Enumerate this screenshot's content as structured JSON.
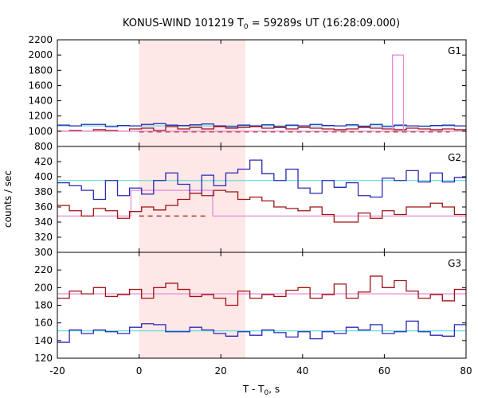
{
  "title": {
    "prefix": "KONUS-WIND 101219 T",
    "sub": "0",
    "suffix": " = 59289s UT (16:28:09.000)"
  },
  "axes": {
    "xlabel_prefix": "T - T",
    "xlabel_sub": "0",
    "xlabel_suffix": ", s",
    "ylabel": "counts / sec"
  },
  "colors": {
    "highlight": "#fde7e7",
    "blue": "#2a2ab4",
    "red": "#a01414",
    "cyan": "#66dddd",
    "pink": "#e48ad8"
  },
  "chart_data": {
    "type": "line",
    "xlim": [
      -20,
      80
    ],
    "xticks": [
      -20,
      0,
      20,
      40,
      60,
      80
    ],
    "highlight_interval": [
      0,
      26
    ],
    "panels": [
      {
        "label": "G1",
        "ylim": [
          800,
          2200
        ],
        "yticks": [
          800,
          1000,
          1200,
          1400,
          1600,
          1800,
          2000,
          2200
        ],
        "step_series": [
          {
            "color": "blue",
            "x0": -20,
            "dx": 2.944,
            "values": [
              1080,
              1070,
              1090,
              1090,
              1060,
              1075,
              1070,
              1090,
              1100,
              1080,
              1075,
              1085,
              1095,
              1070,
              1060,
              1080,
              1070,
              1085,
              1060,
              1080,
              1070,
              1090,
              1075,
              1070,
              1085,
              1065,
              1090,
              1060,
              1080,
              1070,
              1065,
              1075,
              1080,
              1070,
              1055
            ]
          },
          {
            "color": "red",
            "x0": -20,
            "dx": 2.944,
            "values": [
              1000,
              1010,
              1000,
              1020,
              1010,
              1000,
              1030,
              1040,
              1010,
              1060,
              1030,
              1050,
              1030,
              1060,
              1040,
              1050,
              1060,
              1040,
              1050,
              1030,
              1050,
              1040,
              1030,
              1020,
              1030,
              1050,
              1040,
              1030,
              1020,
              1040,
              1030,
              1020,
              1030,
              1020,
              1040
            ]
          },
          {
            "color": "pink",
            "steps": [
              [
                -20,
                1000
              ],
              [
                62,
                2000
              ],
              [
                64.7,
                1000
              ],
              [
                80,
                1000
              ]
            ]
          }
        ],
        "levels": [
          {
            "color": "cyan",
            "value": 1070,
            "from": -20,
            "to": 80
          },
          {
            "color": "pink",
            "value": 1000,
            "from": -20,
            "to": 80
          }
        ],
        "dashed_segments": [
          {
            "color": "red",
            "value": 990,
            "from": 0,
            "to": 76
          }
        ]
      },
      {
        "label": "G2",
        "ylim": [
          300,
          440
        ],
        "yticks": [
          300,
          320,
          340,
          360,
          380,
          400,
          420
        ],
        "step_series": [
          {
            "color": "blue",
            "x0": -20,
            "dx": 2.944,
            "values": [
              392,
              388,
              382,
              370,
              395,
              375,
              385,
              377,
              395,
              405,
              390,
              378,
              402,
              388,
              405,
              410,
              422,
              404,
              395,
              410,
              385,
              378,
              395,
              386,
              392,
              375,
              373,
              398,
              395,
              408,
              393,
              405,
              393,
              399,
              385,
              380,
              395,
              400,
              412,
              395,
              380,
              388,
              385,
              396,
              373,
              400,
              385
            ]
          },
          {
            "color": "red",
            "x0": -20,
            "dx": 2.944,
            "values": [
              362,
              355,
              348,
              358,
              355,
              345,
              354,
              360,
              356,
              362,
              370,
              378,
              375,
              382,
              380,
              370,
              373,
              368,
              360,
              358,
              355,
              360,
              350,
              340,
              340,
              352,
              345,
              355,
              350,
              360,
              360,
              365,
              360,
              350,
              345,
              342,
              330,
              348
            ]
          }
        ],
        "levels": [
          {
            "color": "cyan",
            "value": 395,
            "from": -20,
            "to": 80
          },
          {
            "color": "pink",
            "value": 348,
            "from": -20,
            "to": -2
          },
          {
            "color": "pink",
            "value": 348,
            "from": 18,
            "to": 80
          }
        ],
        "boxes": [
          {
            "color": "pink",
            "value": 382,
            "from": -2,
            "to": 18
          }
        ],
        "dashed_segments": [
          {
            "color": "red",
            "value": 348,
            "from": 0,
            "to": 17
          }
        ]
      },
      {
        "label": "G3",
        "ylim": [
          120,
          240
        ],
        "yticks": [
          120,
          140,
          160,
          180,
          200,
          220
        ],
        "step_series": [
          {
            "color": "blue",
            "x0": -20,
            "dx": 2.944,
            "values": [
              138,
              152,
              148,
              152,
              150,
              148,
              155,
              159,
              158,
              150,
              150,
              155,
              152,
              148,
              145,
              150,
              146,
              152,
              149,
              144,
              150,
              142,
              150,
              148,
              155,
              152,
              158,
              148,
              150,
              162,
              150,
              146,
              145,
              158,
              160,
              165,
              148,
              145,
              154,
              150,
              145,
              160,
              150,
              142,
              145,
              152,
              155
            ]
          },
          {
            "color": "red",
            "x0": -20,
            "dx": 2.944,
            "values": [
              188,
              196,
              193,
              200,
              190,
              192,
              198,
              188,
              200,
              205,
              198,
              190,
              192,
              188,
              180,
              196,
              188,
              192,
              190,
              197,
              200,
              188,
              192,
              204,
              188,
              195,
              213,
              200,
              208,
              196,
              188,
              192,
              185,
              198,
              200,
              205,
              196,
              192,
              190,
              200,
              210,
              192,
              188,
              195,
              206,
              194,
              190,
              214,
              192
            ]
          }
        ],
        "levels": [
          {
            "color": "cyan",
            "value": 151,
            "from": -20,
            "to": 80
          },
          {
            "color": "pink",
            "value": 193,
            "from": -20,
            "to": 80
          }
        ]
      }
    ]
  }
}
